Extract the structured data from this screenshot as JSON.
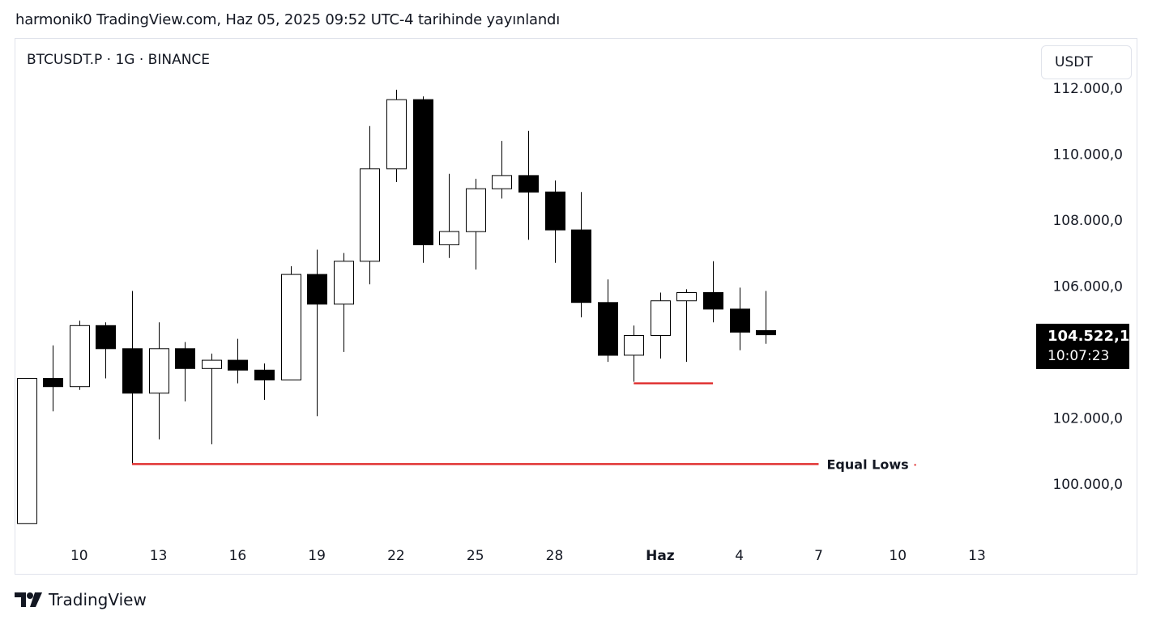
{
  "header": {
    "published_line": "harmonik0 TradingView.com, Haz 05, 2025 09:52 UTC-4 tarihinde yayınlandı"
  },
  "chart": {
    "symbol_line": "BTCUSDT.P · 1G · BINANCE",
    "currency": "USDT",
    "last_price": "104.522,1",
    "countdown": "10:07:23"
  },
  "footer": {
    "brand": "TradingView"
  },
  "colors": {
    "up_fill": "#ffffff",
    "down_fill": "#000000",
    "wick": "#000000",
    "level_line": "#e03131"
  },
  "chart_data": {
    "type": "candlestick",
    "y_axis": {
      "range": [
        98500,
        112500
      ],
      "ticks": [
        100000,
        102000,
        106000,
        108000,
        110000,
        112000
      ],
      "tick_labels": [
        "100.000,0",
        "102.000,0",
        "106.000,0",
        "108.000,0",
        "110.000,0",
        "112.000,0"
      ]
    },
    "x_axis": {
      "range": [
        "2025-05-07",
        "2025-06-18"
      ],
      "ticks": [
        {
          "date": "2025-05-10",
          "label": "10"
        },
        {
          "date": "2025-05-13",
          "label": "13"
        },
        {
          "date": "2025-05-16",
          "label": "16"
        },
        {
          "date": "2025-05-19",
          "label": "19"
        },
        {
          "date": "2025-05-22",
          "label": "22"
        },
        {
          "date": "2025-05-25",
          "label": "25"
        },
        {
          "date": "2025-05-28",
          "label": "28"
        },
        {
          "date": "2025-06-01",
          "label": "Haz",
          "bold": true
        },
        {
          "date": "2025-06-04",
          "label": "4"
        },
        {
          "date": "2025-06-07",
          "label": "7"
        },
        {
          "date": "2025-06-10",
          "label": "10"
        },
        {
          "date": "2025-06-13",
          "label": "13"
        }
      ]
    },
    "candles": [
      {
        "date": "2025-05-08",
        "open": 98800,
        "high": 103200,
        "low": 98800,
        "close": 103200
      },
      {
        "date": "2025-05-09",
        "open": 103200,
        "high": 104200,
        "low": 102200,
        "close": 102950
      },
      {
        "date": "2025-05-10",
        "open": 102950,
        "high": 104950,
        "low": 102850,
        "close": 104800
      },
      {
        "date": "2025-05-11",
        "open": 104800,
        "high": 104900,
        "low": 103200,
        "close": 104100
      },
      {
        "date": "2025-05-12",
        "open": 104100,
        "high": 105850,
        "low": 100600,
        "close": 102750
      },
      {
        "date": "2025-05-13",
        "open": 102750,
        "high": 104900,
        "low": 101350,
        "close": 104100
      },
      {
        "date": "2025-05-14",
        "open": 104100,
        "high": 104300,
        "low": 102500,
        "close": 103500
      },
      {
        "date": "2025-05-15",
        "open": 103500,
        "high": 103950,
        "low": 101200,
        "close": 103750
      },
      {
        "date": "2025-05-16",
        "open": 103750,
        "high": 104400,
        "low": 103050,
        "close": 103450
      },
      {
        "date": "2025-05-17",
        "open": 103450,
        "high": 103650,
        "low": 102550,
        "close": 103150
      },
      {
        "date": "2025-05-18",
        "open": 103150,
        "high": 106600,
        "low": 103150,
        "close": 106350
      },
      {
        "date": "2025-05-19",
        "open": 106350,
        "high": 107100,
        "low": 102050,
        "close": 105450
      },
      {
        "date": "2025-05-20",
        "open": 105450,
        "high": 107000,
        "low": 104000,
        "close": 106750
      },
      {
        "date": "2025-05-21",
        "open": 106750,
        "high": 110850,
        "low": 106050,
        "close": 109550
      },
      {
        "date": "2025-05-22",
        "open": 109550,
        "high": 111950,
        "low": 109150,
        "close": 111650
      },
      {
        "date": "2025-05-23",
        "open": 111650,
        "high": 111750,
        "low": 106700,
        "close": 107250
      },
      {
        "date": "2025-05-24",
        "open": 107250,
        "high": 109400,
        "low": 106850,
        "close": 107650
      },
      {
        "date": "2025-05-25",
        "open": 107650,
        "high": 109250,
        "low": 106500,
        "close": 108950
      },
      {
        "date": "2025-05-26",
        "open": 108950,
        "high": 110400,
        "low": 108650,
        "close": 109350
      },
      {
        "date": "2025-05-27",
        "open": 109350,
        "high": 110700,
        "low": 107400,
        "close": 108850
      },
      {
        "date": "2025-05-28",
        "open": 108850,
        "high": 109200,
        "low": 106700,
        "close": 107700
      },
      {
        "date": "2025-05-29",
        "open": 107700,
        "high": 108850,
        "low": 105050,
        "close": 105500
      },
      {
        "date": "2025-05-30",
        "open": 105500,
        "high": 106200,
        "low": 103700,
        "close": 103900
      },
      {
        "date": "2025-05-31",
        "open": 103900,
        "high": 104800,
        "low": 103100,
        "close": 104500
      },
      {
        "date": "2025-06-01",
        "open": 104500,
        "high": 105800,
        "low": 103800,
        "close": 105550
      },
      {
        "date": "2025-06-02",
        "open": 105550,
        "high": 105900,
        "low": 103700,
        "close": 105800
      },
      {
        "date": "2025-06-03",
        "open": 105800,
        "high": 106750,
        "low": 104900,
        "close": 105300
      },
      {
        "date": "2025-06-04",
        "open": 105300,
        "high": 105950,
        "low": 104050,
        "close": 104600
      },
      {
        "date": "2025-06-05",
        "open": 104650,
        "high": 105850,
        "low": 104250,
        "close": 104522
      }
    ],
    "annotations": [
      {
        "type": "hline",
        "price": 100600,
        "from": "2025-05-12",
        "to": "2025-06-07",
        "label": "Equal Lows"
      },
      {
        "type": "hline",
        "price": 103050,
        "from": "2025-05-31",
        "to": "2025-06-03"
      }
    ]
  }
}
